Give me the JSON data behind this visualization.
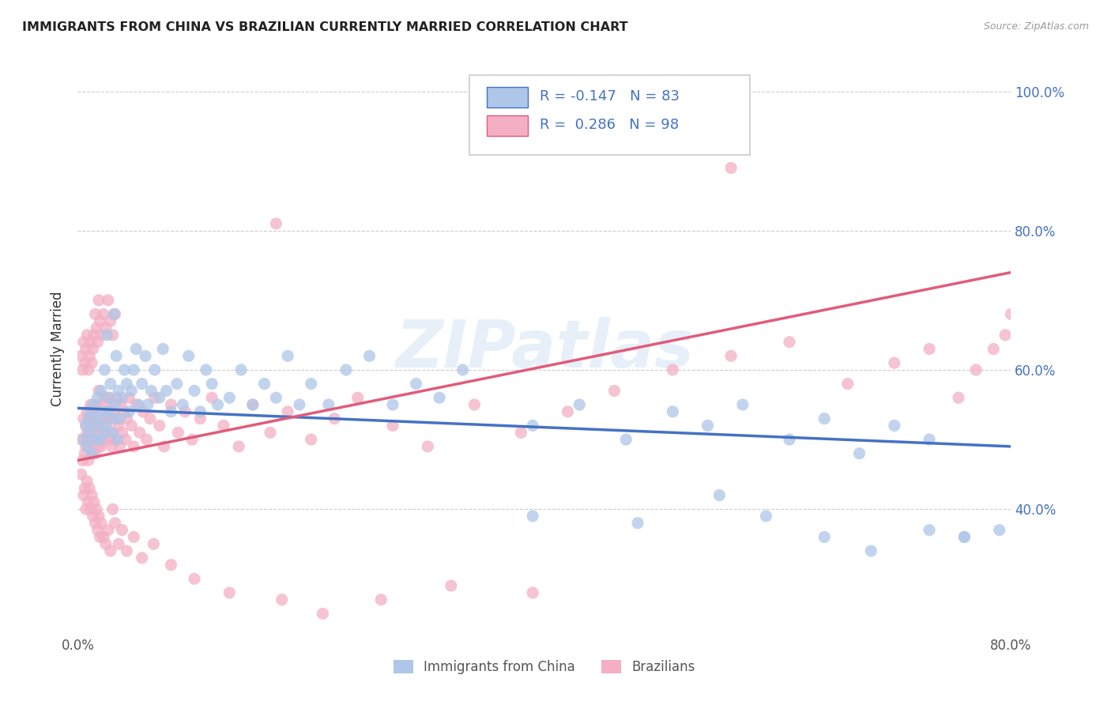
{
  "title": "IMMIGRANTS FROM CHINA VS BRAZILIAN CURRENTLY MARRIED CORRELATION CHART",
  "source": "Source: ZipAtlas.com",
  "ylabel": "Currently Married",
  "legend_label1": "Immigrants from China",
  "legend_label2": "Brazilians",
  "R1": -0.147,
  "N1": 83,
  "R2": 0.286,
  "N2": 98,
  "color_china": "#aec6e8",
  "color_brazil": "#f4afc4",
  "color_china_line": "#4472c4",
  "color_brazil_line": "#e05c7a",
  "color_legend_text": "#4472c4",
  "watermark": "ZIPatlas",
  "xlim": [
    0.0,
    0.8
  ],
  "ylim": [
    0.22,
    1.04
  ],
  "yticks": [
    0.4,
    0.6,
    0.8,
    1.0
  ],
  "ytick_labels": [
    "40.0%",
    "60.0%",
    "80.0%",
    "100.0%"
  ],
  "china_x": [
    0.005,
    0.007,
    0.008,
    0.009,
    0.01,
    0.011,
    0.012,
    0.013,
    0.015,
    0.016,
    0.017,
    0.018,
    0.019,
    0.02,
    0.021,
    0.022,
    0.023,
    0.024,
    0.025,
    0.026,
    0.027,
    0.028,
    0.029,
    0.03,
    0.031,
    0.032,
    0.033,
    0.034,
    0.035,
    0.036,
    0.038,
    0.04,
    0.042,
    0.044,
    0.046,
    0.048,
    0.05,
    0.052,
    0.055,
    0.058,
    0.06,
    0.063,
    0.066,
    0.07,
    0.073,
    0.076,
    0.08,
    0.085,
    0.09,
    0.095,
    0.1,
    0.105,
    0.11,
    0.115,
    0.12,
    0.13,
    0.14,
    0.15,
    0.16,
    0.17,
    0.18,
    0.19,
    0.2,
    0.215,
    0.23,
    0.25,
    0.27,
    0.29,
    0.31,
    0.33,
    0.39,
    0.43,
    0.47,
    0.51,
    0.54,
    0.57,
    0.61,
    0.64,
    0.67,
    0.7,
    0.73,
    0.76,
    0.79
  ],
  "china_y": [
    0.5,
    0.52,
    0.49,
    0.53,
    0.51,
    0.54,
    0.48,
    0.55,
    0.5,
    0.52,
    0.56,
    0.53,
    0.5,
    0.57,
    0.54,
    0.51,
    0.6,
    0.52,
    0.65,
    0.54,
    0.56,
    0.58,
    0.51,
    0.53,
    0.68,
    0.55,
    0.62,
    0.5,
    0.57,
    0.53,
    0.56,
    0.6,
    0.58,
    0.54,
    0.57,
    0.6,
    0.63,
    0.55,
    0.58,
    0.62,
    0.55,
    0.57,
    0.6,
    0.56,
    0.63,
    0.57,
    0.54,
    0.58,
    0.55,
    0.62,
    0.57,
    0.54,
    0.6,
    0.58,
    0.55,
    0.56,
    0.6,
    0.55,
    0.58,
    0.56,
    0.62,
    0.55,
    0.58,
    0.55,
    0.6,
    0.62,
    0.55,
    0.58,
    0.56,
    0.6,
    0.52,
    0.55,
    0.5,
    0.54,
    0.52,
    0.55,
    0.5,
    0.53,
    0.48,
    0.52,
    0.5,
    0.36,
    0.37
  ],
  "brazil_x": [
    0.003,
    0.004,
    0.005,
    0.006,
    0.007,
    0.007,
    0.008,
    0.008,
    0.009,
    0.009,
    0.01,
    0.01,
    0.011,
    0.011,
    0.012,
    0.012,
    0.013,
    0.013,
    0.014,
    0.015,
    0.015,
    0.016,
    0.016,
    0.017,
    0.017,
    0.018,
    0.018,
    0.019,
    0.019,
    0.02,
    0.02,
    0.021,
    0.022,
    0.022,
    0.023,
    0.024,
    0.025,
    0.025,
    0.026,
    0.027,
    0.028,
    0.028,
    0.029,
    0.03,
    0.03,
    0.031,
    0.032,
    0.033,
    0.034,
    0.035,
    0.036,
    0.037,
    0.038,
    0.04,
    0.041,
    0.042,
    0.044,
    0.046,
    0.048,
    0.05,
    0.053,
    0.056,
    0.059,
    0.062,
    0.066,
    0.07,
    0.074,
    0.08,
    0.086,
    0.092,
    0.098,
    0.105,
    0.115,
    0.125,
    0.138,
    0.15,
    0.165,
    0.18,
    0.2,
    0.22,
    0.24,
    0.27,
    0.3,
    0.34,
    0.38,
    0.42,
    0.46,
    0.51,
    0.56,
    0.61,
    0.66,
    0.7,
    0.73,
    0.755,
    0.77,
    0.785,
    0.795,
    0.8
  ],
  "brazil_y": [
    0.5,
    0.47,
    0.53,
    0.48,
    0.49,
    0.52,
    0.51,
    0.54,
    0.5,
    0.47,
    0.53,
    0.49,
    0.51,
    0.55,
    0.52,
    0.48,
    0.54,
    0.5,
    0.53,
    0.51,
    0.48,
    0.55,
    0.52,
    0.5,
    0.53,
    0.49,
    0.57,
    0.51,
    0.54,
    0.52,
    0.49,
    0.55,
    0.53,
    0.5,
    0.56,
    0.52,
    0.54,
    0.51,
    0.53,
    0.56,
    0.5,
    0.53,
    0.49,
    0.55,
    0.51,
    0.54,
    0.5,
    0.53,
    0.56,
    0.52,
    0.49,
    0.55,
    0.51,
    0.54,
    0.5,
    0.53,
    0.56,
    0.52,
    0.49,
    0.55,
    0.51,
    0.54,
    0.5,
    0.53,
    0.56,
    0.52,
    0.49,
    0.55,
    0.51,
    0.54,
    0.5,
    0.53,
    0.56,
    0.52,
    0.49,
    0.55,
    0.51,
    0.54,
    0.5,
    0.53,
    0.56,
    0.52,
    0.49,
    0.55,
    0.51,
    0.54,
    0.57,
    0.6,
    0.62,
    0.64,
    0.58,
    0.61,
    0.63,
    0.56,
    0.6,
    0.63,
    0.65,
    0.68
  ],
  "brazil_extra_x": [
    0.003,
    0.005,
    0.006,
    0.007,
    0.008,
    0.009,
    0.01,
    0.011,
    0.012,
    0.013,
    0.014,
    0.015,
    0.016,
    0.017,
    0.018,
    0.019,
    0.02,
    0.022,
    0.024,
    0.026,
    0.028,
    0.03,
    0.032,
    0.035,
    0.038,
    0.042,
    0.048,
    0.055,
    0.065,
    0.08,
    0.1,
    0.13,
    0.175,
    0.21,
    0.26,
    0.32,
    0.39
  ],
  "brazil_extra_y": [
    0.45,
    0.42,
    0.43,
    0.4,
    0.44,
    0.41,
    0.43,
    0.4,
    0.42,
    0.39,
    0.41,
    0.38,
    0.4,
    0.37,
    0.39,
    0.36,
    0.38,
    0.36,
    0.35,
    0.37,
    0.34,
    0.4,
    0.38,
    0.35,
    0.37,
    0.34,
    0.36,
    0.33,
    0.35,
    0.32,
    0.3,
    0.28,
    0.27,
    0.25,
    0.27,
    0.29,
    0.28
  ],
  "brazil_high_x": [
    0.003,
    0.004,
    0.005,
    0.006,
    0.007,
    0.008,
    0.009,
    0.01,
    0.011,
    0.012,
    0.013,
    0.014,
    0.015,
    0.016,
    0.017,
    0.018,
    0.019,
    0.02,
    0.022,
    0.024,
    0.026,
    0.028,
    0.03,
    0.032,
    0.17,
    0.56
  ],
  "brazil_high_y": [
    0.62,
    0.6,
    0.64,
    0.61,
    0.63,
    0.65,
    0.6,
    0.62,
    0.64,
    0.61,
    0.63,
    0.65,
    0.68,
    0.66,
    0.64,
    0.7,
    0.67,
    0.65,
    0.68,
    0.66,
    0.7,
    0.67,
    0.65,
    0.68,
    0.81,
    0.89
  ],
  "china_low_x": [
    0.39,
    0.48,
    0.55,
    0.59,
    0.64,
    0.68,
    0.73,
    0.76
  ],
  "china_low_y": [
    0.39,
    0.38,
    0.42,
    0.39,
    0.36,
    0.34,
    0.37,
    0.36
  ]
}
